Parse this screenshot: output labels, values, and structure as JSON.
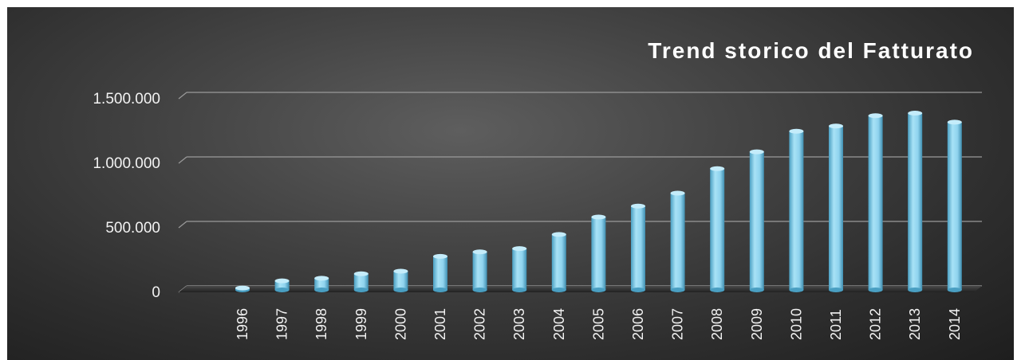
{
  "chart_data": {
    "type": "bar",
    "title": "Trend storico del Fatturato",
    "xlabel": "",
    "ylabel": "",
    "categories": [
      "1996",
      "1997",
      "1998",
      "1999",
      "2000",
      "2001",
      "2002",
      "2003",
      "2004",
      "2005",
      "2006",
      "2007",
      "2008",
      "2009",
      "2010",
      "2011",
      "2012",
      "2013",
      "2014"
    ],
    "values": [
      15000,
      70000,
      90000,
      125000,
      145000,
      260000,
      295000,
      320000,
      430000,
      565000,
      650000,
      750000,
      940000,
      1070000,
      1230000,
      1270000,
      1350000,
      1370000,
      1300000
    ],
    "ylim": [
      0,
      1500000
    ],
    "yticks": [
      0,
      500000,
      1000000,
      1500000
    ],
    "ytick_labels": [
      "0",
      "500.000",
      "1.000.000",
      "1.500.000"
    ],
    "grid": true,
    "legend": "none",
    "colors": {
      "bar": "#8fd3ee",
      "bar_dark": "#4a9fc2",
      "gridline": "#9a9a9a",
      "text": "#f2f2f2"
    }
  }
}
